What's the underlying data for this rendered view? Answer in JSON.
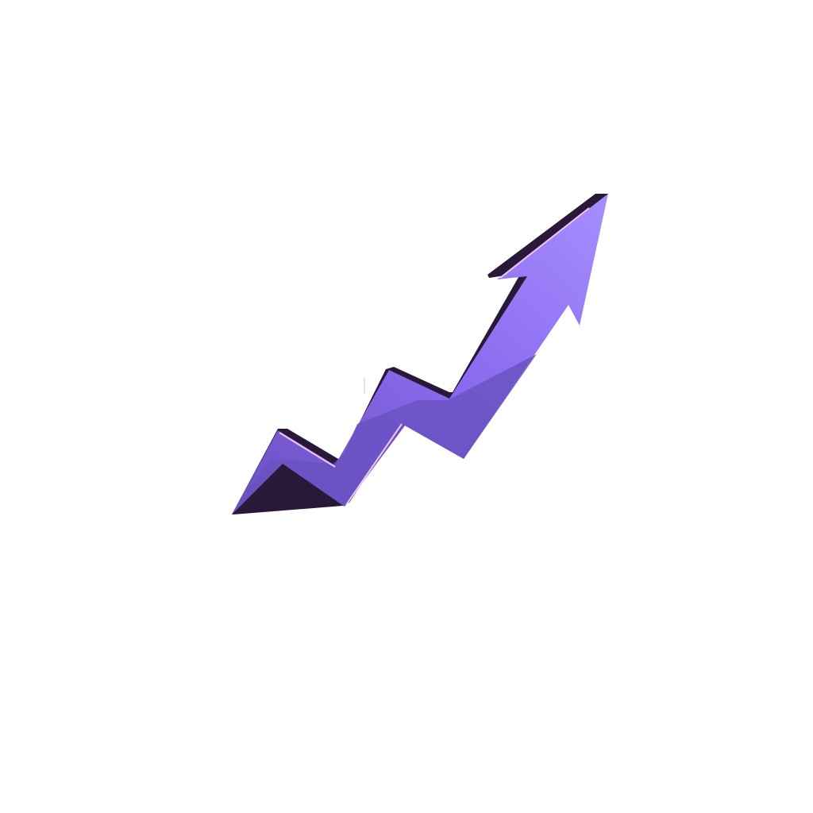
{
  "colors": {
    "background": "#ffffff",
    "arrow_top": "#a58fff",
    "arrow_mid": "#8c6cf0",
    "arrow_bottom": "#6a4fc0",
    "arrow_shadow_face": "#6a52c2",
    "arrow_edge": "#2a1838",
    "arrow_highlight": "#f2c6f2"
  },
  "icon": "trending-up-arrow-icon"
}
